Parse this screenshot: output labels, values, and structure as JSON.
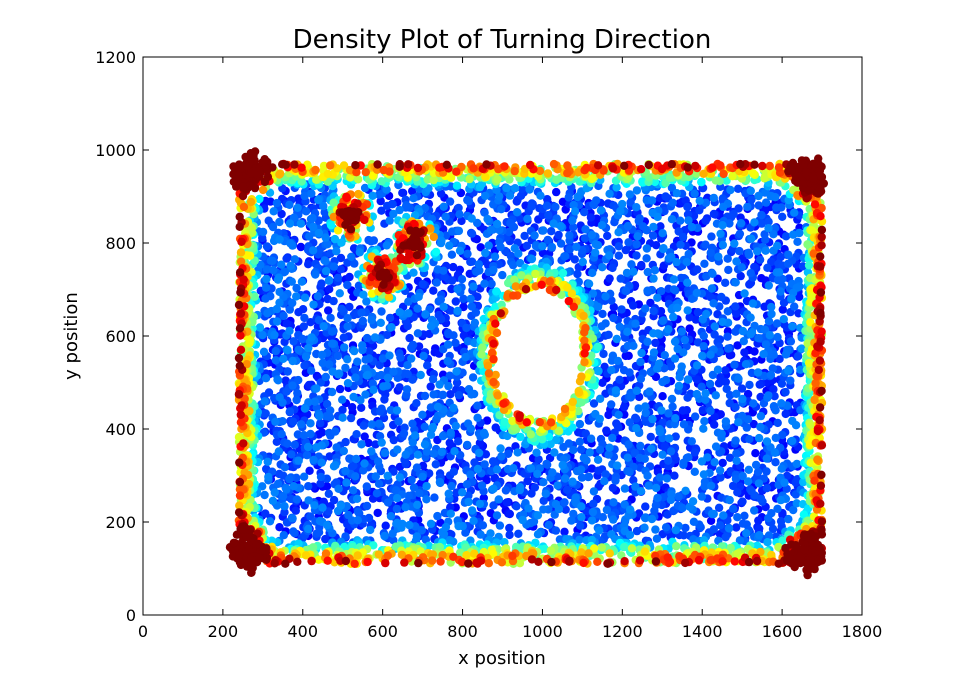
{
  "chart_data": {
    "type": "scatter",
    "title": "Density Plot of Turning Direction",
    "xlabel": "x position",
    "ylabel": "y position",
    "xlim": [
      0,
      1800
    ],
    "ylim": [
      0,
      1200
    ],
    "xticks": [
      0,
      200,
      400,
      600,
      800,
      1000,
      1200,
      1400,
      1600,
      1800
    ],
    "yticks": [
      0,
      200,
      400,
      600,
      800,
      1000,
      1200
    ],
    "xtick_labels": [
      "0",
      "200",
      "400",
      "600",
      "800",
      "1000",
      "1200",
      "1400",
      "1600",
      "1800"
    ],
    "ytick_labels": [
      "0",
      "200",
      "400",
      "600",
      "800",
      "1000",
      "1200"
    ],
    "grid": false,
    "colormap": "jet",
    "colormap_stops": [
      "#00007f",
      "#0000ff",
      "#007fff",
      "#00ffff",
      "#7fff7f",
      "#ffff00",
      "#ff7f00",
      "#ff0000",
      "#7f0000"
    ],
    "arena": {
      "x_range": [
        240,
        1700
      ],
      "y_range": [
        110,
        970
      ]
    },
    "hole": {
      "center": [
        990,
        560
      ],
      "radii": [
        110,
        140
      ]
    },
    "hotspots": [
      {
        "x": 270,
        "y": 950,
        "density": 1.0
      },
      {
        "x": 1660,
        "y": 945,
        "density": 1.0
      },
      {
        "x": 265,
        "y": 140,
        "density": 1.0
      },
      {
        "x": 1655,
        "y": 135,
        "density": 1.0
      },
      {
        "x": 680,
        "y": 800,
        "density": 0.9
      },
      {
        "x": 520,
        "y": 860,
        "density": 0.8
      },
      {
        "x": 600,
        "y": 730,
        "density": 0.75
      }
    ]
  }
}
